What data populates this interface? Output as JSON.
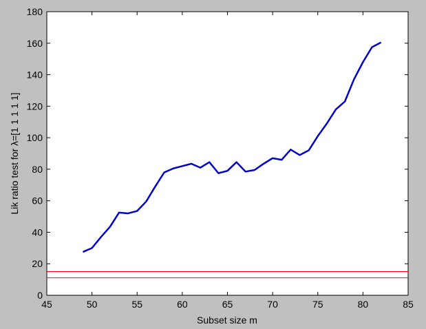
{
  "chart_data": {
    "type": "line",
    "xlabel": "Subset size m",
    "ylabel": "Lik ratio test for λ=[1 1 1 1 1]",
    "xlim": [
      45,
      85
    ],
    "xticks": [
      45,
      50,
      55,
      60,
      65,
      70,
      75,
      80,
      85
    ],
    "ylim": [
      0,
      180
    ],
    "yticks": [
      0,
      20,
      40,
      60,
      80,
      100,
      120,
      140,
      160,
      180
    ],
    "series": [
      {
        "color": "#0000cc",
        "x": [
          49,
          50,
          51,
          52,
          53,
          54,
          55,
          56,
          57,
          58,
          59,
          60,
          61,
          62,
          63,
          64,
          65,
          66,
          67,
          68,
          69,
          70,
          71,
          72,
          73,
          74,
          75,
          76,
          77,
          78,
          79,
          80,
          81,
          82
        ],
        "values": [
          27.5,
          30,
          37,
          43.5,
          52.5,
          52,
          53.5,
          59.5,
          69,
          78,
          80.5,
          82,
          83.5,
          81,
          84.5,
          77.5,
          79,
          84.5,
          78.5,
          79.5,
          83.5,
          87,
          86,
          92.5,
          89,
          92,
          101,
          109,
          118,
          123,
          137,
          148,
          157.5,
          160.5
        ]
      },
      {
        "color": "#ff0000",
        "x": [
          45,
          85
        ],
        "values": [
          15.1,
          15.1
        ]
      },
      {
        "color": "#ff0000",
        "x": [
          45,
          85
        ],
        "values": [
          11.1,
          11.1
        ]
      }
    ]
  }
}
